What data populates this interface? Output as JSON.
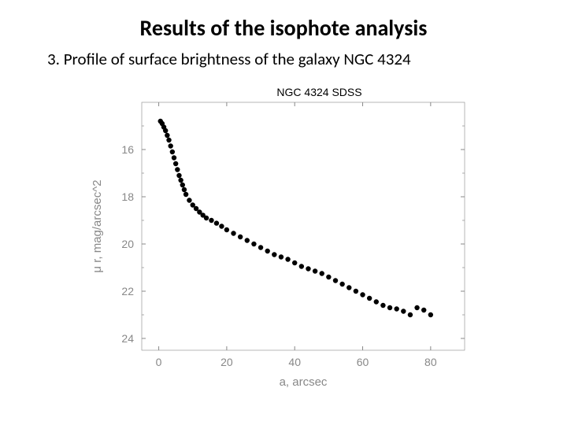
{
  "title": "Results of the isophote analysis",
  "subtitle": "3. Profile of surface brightness of the galaxy NGC 4324",
  "chart": {
    "type": "scatter",
    "title": "NGC 4324 SDSS",
    "title_fontsize": 14,
    "xlabel": "a, arcsec",
    "ylabel": "μ r, mag/arcsec^2",
    "label_fontsize": 15,
    "tick_fontsize": 14,
    "xlim": [
      -5,
      90
    ],
    "ylim": [
      24.5,
      14
    ],
    "xticks": [
      0,
      20,
      40,
      60,
      80
    ],
    "yticks": [
      16,
      18,
      20,
      22,
      24
    ],
    "y_inverted": true,
    "background_color": "#ffffff",
    "marker": "circle",
    "marker_size": 3.2,
    "marker_color": "#000000",
    "tick_color": "#888888",
    "axis_color": "#888888",
    "data": [
      {
        "x": 0.5,
        "y": 14.8
      },
      {
        "x": 1,
        "y": 14.9
      },
      {
        "x": 1.5,
        "y": 15.05
      },
      {
        "x": 2,
        "y": 15.2
      },
      {
        "x": 2.5,
        "y": 15.4
      },
      {
        "x": 3,
        "y": 15.6
      },
      {
        "x": 3.5,
        "y": 15.85
      },
      {
        "x": 4,
        "y": 16.1
      },
      {
        "x": 4.5,
        "y": 16.35
      },
      {
        "x": 5,
        "y": 16.6
      },
      {
        "x": 5.5,
        "y": 16.85
      },
      {
        "x": 6,
        "y": 17.1
      },
      {
        "x": 6.5,
        "y": 17.3
      },
      {
        "x": 7,
        "y": 17.5
      },
      {
        "x": 7.5,
        "y": 17.7
      },
      {
        "x": 8,
        "y": 17.9
      },
      {
        "x": 9,
        "y": 18.15
      },
      {
        "x": 10,
        "y": 18.35
      },
      {
        "x": 11,
        "y": 18.5
      },
      {
        "x": 12,
        "y": 18.65
      },
      {
        "x": 13,
        "y": 18.78
      },
      {
        "x": 14,
        "y": 18.9
      },
      {
        "x": 15.5,
        "y": 19.0
      },
      {
        "x": 17,
        "y": 19.12
      },
      {
        "x": 18.5,
        "y": 19.25
      },
      {
        "x": 20,
        "y": 19.4
      },
      {
        "x": 22,
        "y": 19.55
      },
      {
        "x": 24,
        "y": 19.7
      },
      {
        "x": 26,
        "y": 19.85
      },
      {
        "x": 28,
        "y": 20.0
      },
      {
        "x": 30,
        "y": 20.15
      },
      {
        "x": 32,
        "y": 20.3
      },
      {
        "x": 34,
        "y": 20.45
      },
      {
        "x": 36,
        "y": 20.55
      },
      {
        "x": 38,
        "y": 20.65
      },
      {
        "x": 40,
        "y": 20.8
      },
      {
        "x": 42,
        "y": 20.95
      },
      {
        "x": 44,
        "y": 21.05
      },
      {
        "x": 46,
        "y": 21.15
      },
      {
        "x": 48,
        "y": 21.25
      },
      {
        "x": 50,
        "y": 21.4
      },
      {
        "x": 52,
        "y": 21.55
      },
      {
        "x": 54,
        "y": 21.7
      },
      {
        "x": 56,
        "y": 21.85
      },
      {
        "x": 58,
        "y": 22.0
      },
      {
        "x": 60,
        "y": 22.15
      },
      {
        "x": 62,
        "y": 22.3
      },
      {
        "x": 64,
        "y": 22.45
      },
      {
        "x": 66,
        "y": 22.6
      },
      {
        "x": 68,
        "y": 22.7
      },
      {
        "x": 70,
        "y": 22.75
      },
      {
        "x": 72,
        "y": 22.85
      },
      {
        "x": 74,
        "y": 23.0
      },
      {
        "x": 76,
        "y": 22.7
      },
      {
        "x": 78,
        "y": 22.8
      },
      {
        "x": 80,
        "y": 23.0
      }
    ]
  }
}
